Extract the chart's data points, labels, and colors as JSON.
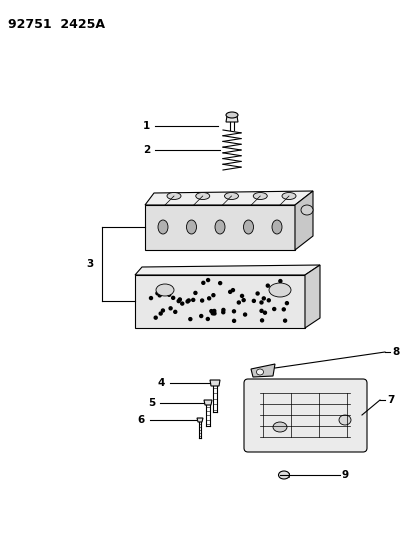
{
  "title": "92751  2425A",
  "background_color": "#ffffff",
  "line_color": "#000000",
  "fig_width": 4.14,
  "fig_height": 5.33,
  "dpi": 100
}
